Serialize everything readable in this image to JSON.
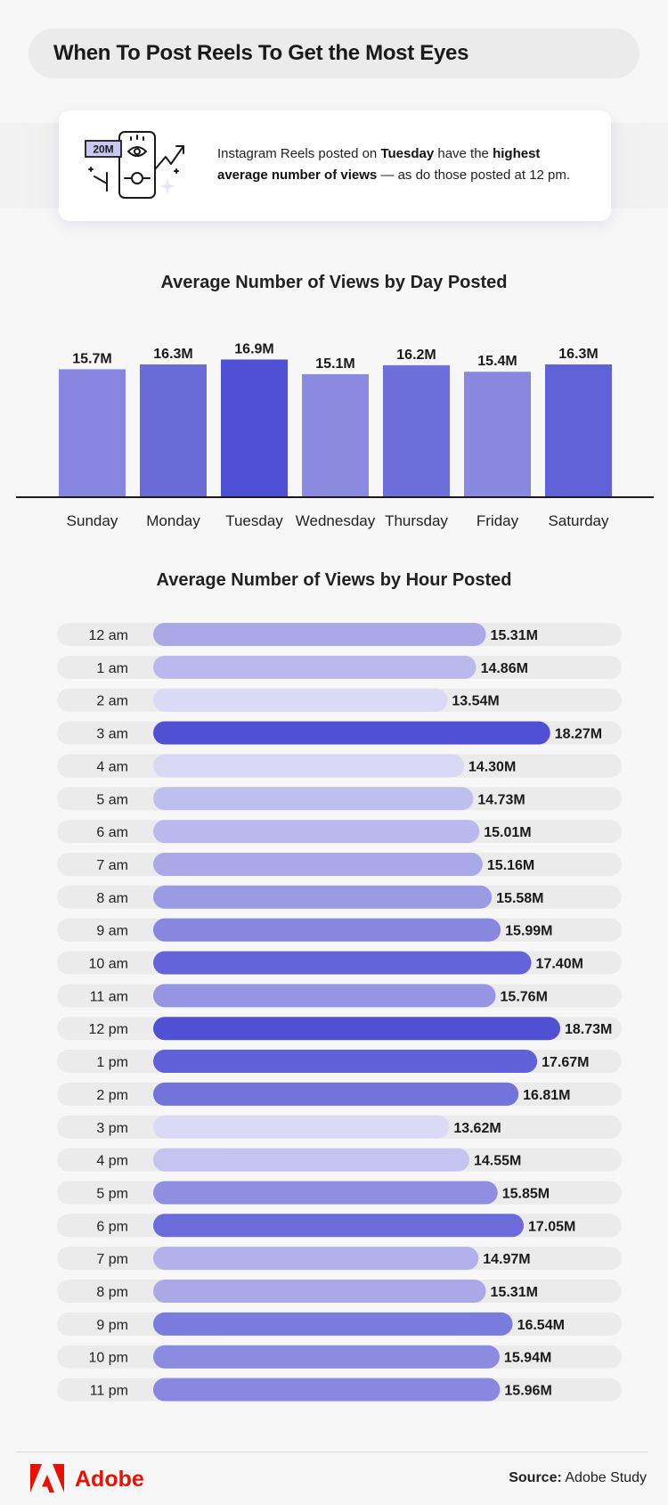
{
  "header": {
    "title": "When To Post Reels To Get the Most Eyes"
  },
  "info": {
    "illustration_badge": "20M",
    "text_intro": "Instagram Reels posted on ",
    "text_day": "Tuesday",
    "text_mid": " have the ",
    "text_highlight": "highest average number of views",
    "text_end": " — as do those posted at 12 pm."
  },
  "chart_data": [
    {
      "type": "bar",
      "title": "Average Number of Views by Day Posted",
      "categories": [
        "Sunday",
        "Monday",
        "Tuesday",
        "Wednesday",
        "Thursday",
        "Friday",
        "Saturday"
      ],
      "values": [
        15.7,
        16.3,
        16.9,
        15.1,
        16.2,
        15.4,
        16.3
      ],
      "labels": [
        "15.7M",
        "16.3M",
        "16.9M",
        "15.1M",
        "16.2M",
        "15.4M",
        "16.3M"
      ],
      "ylim": [
        0,
        17.5
      ],
      "colors": [
        "#8686e0",
        "#6b6bd8",
        "#5050d4",
        "#8a8ae0",
        "#6e6edb",
        "#8888e0",
        "#6161d8"
      ]
    },
    {
      "type": "bar",
      "orientation": "horizontal",
      "title": "Average Number of Views by Hour Posted",
      "categories": [
        "12 am",
        "1 am",
        "2 am",
        "3 am",
        "4 am",
        "5 am",
        "6 am",
        "7 am",
        "8 am",
        "9 am",
        "10 am",
        "11 am",
        "12 pm",
        "1 pm",
        "2 pm",
        "3 pm",
        "4 pm",
        "5 pm",
        "6 pm",
        "7 pm",
        "8 pm",
        "9 pm",
        "10 pm",
        "11 pm"
      ],
      "values": [
        15.31,
        14.86,
        13.54,
        18.27,
        14.3,
        14.73,
        15.01,
        15.16,
        15.58,
        15.99,
        17.4,
        15.76,
        18.73,
        17.67,
        16.81,
        13.62,
        14.55,
        15.85,
        17.05,
        14.97,
        15.31,
        16.54,
        15.94,
        15.96
      ],
      "labels": [
        "15.31M",
        "14.86M",
        "13.54M",
        "18.27M",
        "14.30M",
        "14.73M",
        "15.01M",
        "15.16M",
        "15.58M",
        "15.99M",
        "17.40M",
        "15.76M",
        "18.73M",
        "17.67M",
        "16.81M",
        "13.62M",
        "14.55M",
        "15.85M",
        "17.05M",
        "14.97M",
        "15.31M",
        "16.54M",
        "15.94M",
        "15.96M"
      ],
      "colors": [
        "#a9a9e8",
        "#b9b9ee",
        "#dadaf6",
        "#5050d4",
        "#d8d8f5",
        "#bfbfef",
        "#b9b9ee",
        "#a9a9e8",
        "#9b9be5",
        "#8787e0",
        "#6464d8",
        "#9595e4",
        "#5050d4",
        "#6060d8",
        "#7373dc",
        "#dadaf6",
        "#c4c4f1",
        "#8f8fe2",
        "#6b6bda",
        "#b1b1ec",
        "#a9a9e8",
        "#7b7bde",
        "#8b8be1",
        "#8888e0"
      ]
    }
  ],
  "footer": {
    "brand": "Adobe",
    "source_label": "Source:",
    "source_value": " Adobe Study"
  }
}
